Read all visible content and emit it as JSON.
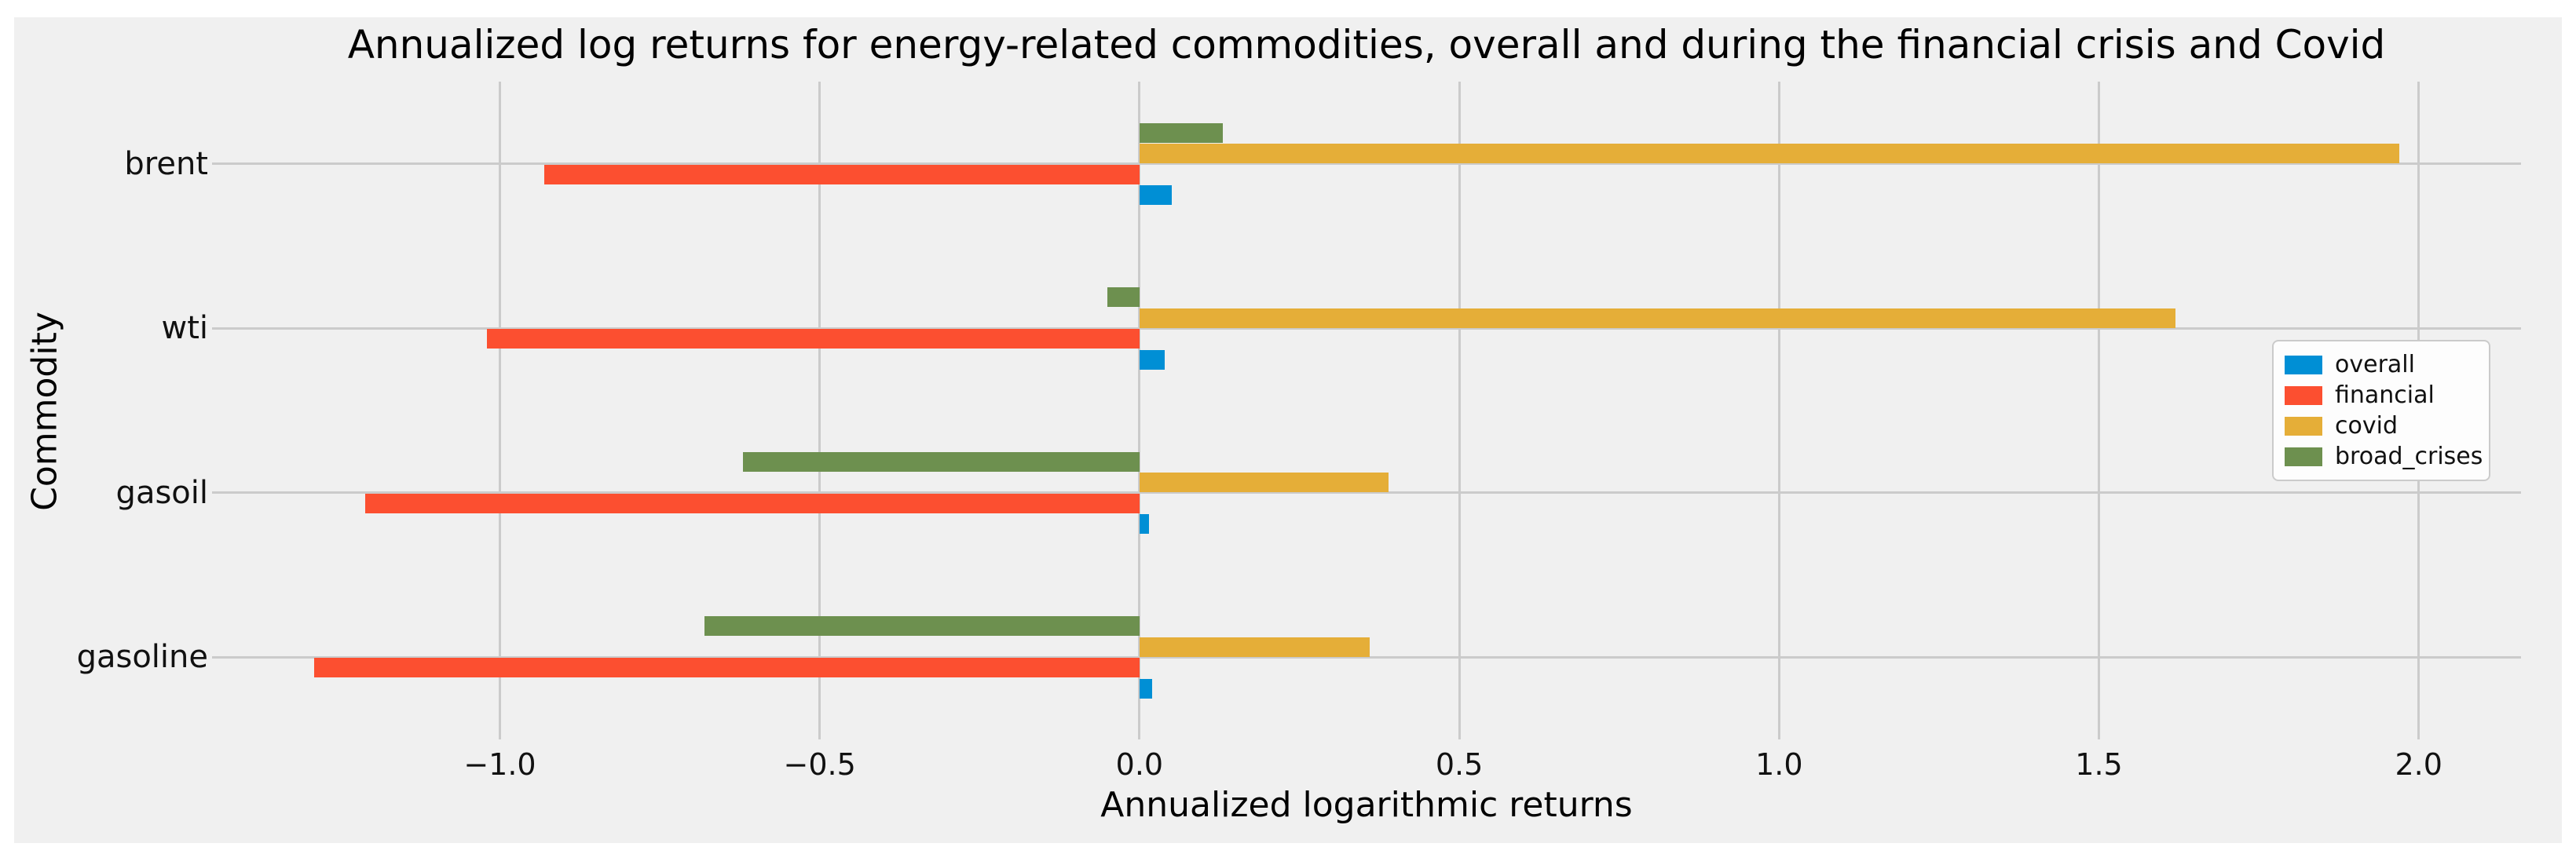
{
  "page": {
    "background": "#ffffff"
  },
  "figure": {
    "background_color": "#f0f0f0",
    "grid_color": "#cbcbcb",
    "legend_background": "#fdfdfd",
    "text_color": "#000000"
  },
  "chart_data": {
    "type": "bar",
    "orientation": "horizontal",
    "title": "Annualized log returns for energy-related commodities, overall and during the financial crisis and Covid",
    "xlabel": "Annualized logarithmic returns",
    "ylabel": "Commodity",
    "categories": [
      "brent",
      "wti",
      "gasoil",
      "gasoline"
    ],
    "series": [
      {
        "name": "overall",
        "color": "#008fd5",
        "values": [
          0.05,
          0.04,
          0.015,
          0.02
        ]
      },
      {
        "name": "financial",
        "color": "#fc4f30",
        "values": [
          -0.93,
          -1.02,
          -1.21,
          -1.29
        ]
      },
      {
        "name": "covid",
        "color": "#e5ae38",
        "values": [
          1.97,
          1.62,
          0.39,
          0.36
        ]
      },
      {
        "name": "broad_crises",
        "color": "#6d904f",
        "values": [
          0.13,
          -0.05,
          -0.62,
          -0.68
        ]
      }
    ],
    "xlim": [
      -1.45,
      2.16
    ],
    "xticks": [
      {
        "value": -1.0,
        "label": "−1.0"
      },
      {
        "value": -0.5,
        "label": "−0.5"
      },
      {
        "value": 0.0,
        "label": "0.0"
      },
      {
        "value": 0.5,
        "label": "0.5"
      },
      {
        "value": 1.0,
        "label": "1.0"
      },
      {
        "value": 1.5,
        "label": "1.5"
      },
      {
        "value": 2.0,
        "label": "2.0"
      }
    ],
    "grid": true,
    "legend_position": "center right"
  }
}
